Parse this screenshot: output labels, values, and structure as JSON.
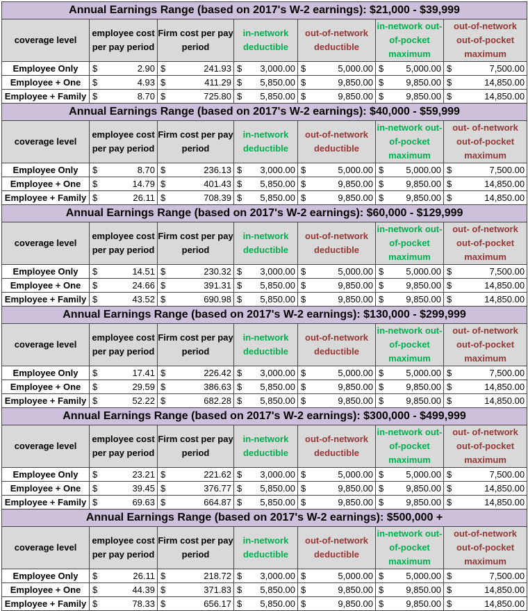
{
  "columns": [
    {
      "label": "coverage level",
      "color": "default"
    },
    {
      "label": "employee cost per pay period",
      "color": "default"
    },
    {
      "label": "Firm cost per pay period",
      "color": "default"
    },
    {
      "label": "in-network deductible",
      "color": "green"
    },
    {
      "label": "out-of-network deductible",
      "color": "red"
    },
    {
      "label": "in-network out-of-pocket maximum",
      "color": "green"
    },
    {
      "label": "out-of-network out-of-pocket maximum",
      "color": "red"
    }
  ],
  "currency_symbol": "$",
  "colors": {
    "band": "#ccc0da",
    "header": "#d9d9d9",
    "green": "#00b050",
    "red": "#953735"
  },
  "sections": [
    {
      "title": "Annual Earnings Range (based on 2017's W-2 earnings):  $21,000 - $39,999",
      "out_oop_header": "out-of-network out-of-pocket maximum",
      "rows": [
        {
          "level": "Employee Only",
          "values": [
            "2.90",
            "241.93",
            "3,000.00",
            "5,000.00",
            "5,000.00",
            "7,500.00"
          ]
        },
        {
          "level": "Employee + One",
          "values": [
            "4.93",
            "411.29",
            "5,850.00",
            "9,850.00",
            "9,850.00",
            "14,850.00"
          ]
        },
        {
          "level": "Employee + Family",
          "values": [
            "8.70",
            "725.80",
            "5,850.00",
            "9,850.00",
            "9,850.00",
            "14,850.00"
          ]
        }
      ]
    },
    {
      "title": "Annual Earnings Range (based on 2017's W-2 earnings):  $40,000 - $59,999",
      "out_oop_header": "out- of-network out-of-pocket maximum",
      "rows": [
        {
          "level": "Employee Only",
          "values": [
            "8.70",
            "236.13",
            "3,000.00",
            "5,000.00",
            "5,000.00",
            "7,500.00"
          ]
        },
        {
          "level": "Employee + One",
          "values": [
            "14.79",
            "401.43",
            "5,850.00",
            "9,850.00",
            "9,850.00",
            "14,850.00"
          ]
        },
        {
          "level": "Employee + Family",
          "values": [
            "26.11",
            "708.39",
            "5,850.00",
            "9,850.00",
            "9,850.00",
            "14,850.00"
          ]
        }
      ]
    },
    {
      "title": "Annual Earnings Range (based on 2017's W-2 earnings):  $60,000 - $129,999",
      "out_oop_header": "out- of-network out-of-pocket maximum",
      "rows": [
        {
          "level": "Employee Only",
          "values": [
            "14.51",
            "230.32",
            "3,000.00",
            "5,000.00",
            "5,000.00",
            "7,500.00"
          ]
        },
        {
          "level": "Employee + One",
          "values": [
            "24.66",
            "391.31",
            "5,850.00",
            "9,850.00",
            "9,850.00",
            "14,850.00"
          ]
        },
        {
          "level": "Employee + Family",
          "values": [
            "43.52",
            "690.98",
            "5,850.00",
            "9,850.00",
            "9,850.00",
            "14,850.00"
          ]
        }
      ]
    },
    {
      "title": "Annual Earnings Range (based on 2017's W-2 earnings):  $130,000 - $299,999",
      "out_oop_header": "out- of-network out-of-pocket maximum",
      "rows": [
        {
          "level": "Employee Only",
          "values": [
            "17.41",
            "226.42",
            "3,000.00",
            "5,000.00",
            "5,000.00",
            "7,500.00"
          ]
        },
        {
          "level": "Employee + One",
          "values": [
            "29.59",
            "386.63",
            "5,850.00",
            "9,850.00",
            "9,850.00",
            "14,850.00"
          ]
        },
        {
          "level": "Employee + Family",
          "values": [
            "52.22",
            "682.28",
            "5,850.00",
            "9,850.00",
            "9,850.00",
            "14,850.00"
          ]
        }
      ]
    },
    {
      "title": "Annual Earnings Range (based on 2017's W-2 earnings):  $300,000 - $499,999",
      "out_oop_header": "out- of-network out-of-pocket maximum",
      "rows": [
        {
          "level": "Employee Only",
          "values": [
            "23.21",
            "221.62",
            "3,000.00",
            "5,000.00",
            "5,000.00",
            "7,500.00"
          ]
        },
        {
          "level": "Employee + One",
          "values": [
            "39.45",
            "376.77",
            "5,850.00",
            "9,850.00",
            "9,850.00",
            "14,850.00"
          ]
        },
        {
          "level": "Employee + Family",
          "values": [
            "69.63",
            "664.87",
            "5,850.00",
            "9,850.00",
            "9,850.00",
            "14,850.00"
          ]
        }
      ]
    },
    {
      "title": "Annual Earnings Range (based on 2017's W-2 earnings):  $500,000 +",
      "out_oop_header": "out-of-network out-of-pocket maximum",
      "rows": [
        {
          "level": "Employee Only",
          "values": [
            "26.11",
            "218.72",
            "3,000.00",
            "5,000.00",
            "5,000.00",
            "7,500.00"
          ]
        },
        {
          "level": "Employee + One",
          "values": [
            "44.39",
            "371.83",
            "5,850.00",
            "9,850.00",
            "9,850.00",
            "14,850.00"
          ]
        },
        {
          "level": "Employee + Family",
          "values": [
            "78.33",
            "656.17",
            "5,850.00",
            "9,850.00",
            "9,850.00",
            "14,850.00"
          ]
        }
      ]
    }
  ]
}
